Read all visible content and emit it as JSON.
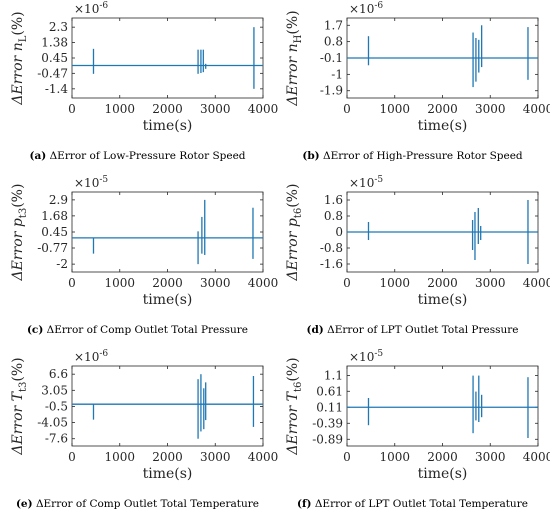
{
  "chart_data": [
    {
      "id": "a",
      "type": "line",
      "caption_letter": "(a)",
      "caption_text": "ΔError of Low-Pressure Rotor Speed",
      "ylabel_main": "ΔError n",
      "ylabel_sub": "L",
      "ylabel_unit": "(%)",
      "multiplier": "×10",
      "multiplier_exp": "-6",
      "xlabel": "time(s)",
      "xlim": [
        0,
        4000
      ],
      "ylim": [
        -1.95,
        2.85
      ],
      "yticks": [
        "2.3",
        "1.38",
        "0.45",
        "-0.47",
        "-1.4"
      ],
      "ytick_values": [
        2.3,
        1.38,
        0.45,
        -0.47,
        -1.4
      ],
      "xticks": [
        "0",
        "1000",
        "2000",
        "3000",
        "4000"
      ],
      "xtick_values": [
        0,
        1000,
        2000,
        3000,
        4000
      ],
      "baseline": 0,
      "spikes": [
        [
          450,
          -0.5,
          1.0
        ],
        [
          2640,
          -0.5,
          0.95
        ],
        [
          2700,
          -0.45,
          0.95
        ],
        [
          2750,
          -0.4,
          0.95
        ],
        [
          2800,
          -0.2,
          0.1
        ],
        [
          3810,
          -1.4,
          2.3
        ]
      ],
      "color": "#1f77b4"
    },
    {
      "id": "b",
      "type": "line",
      "caption_letter": "(b)",
      "caption_text": "ΔError of High-Pressure Rotor Speed",
      "ylabel_main": "ΔError n",
      "ylabel_sub": "H",
      "ylabel_unit": "(%)",
      "multiplier": "×10",
      "multiplier_exp": "-6",
      "xlabel": "time(s)",
      "xlim": [
        0,
        4000
      ],
      "ylim": [
        -2.3,
        2.1
      ],
      "yticks": [
        "1.7",
        "0.8",
        "-0.1",
        "-1",
        "-1.9"
      ],
      "ytick_values": [
        1.7,
        0.8,
        -0.1,
        -1,
        -1.9
      ],
      "xticks": [
        "0",
        "1000",
        "2000",
        "3000",
        "4000"
      ],
      "xtick_values": [
        0,
        1000,
        2000,
        3000,
        4000
      ],
      "baseline": -0.1,
      "spikes": [
        [
          450,
          -0.5,
          1.1
        ],
        [
          2640,
          -1.7,
          1.3
        ],
        [
          2700,
          -1.4,
          1.0
        ],
        [
          2760,
          -0.9,
          0.9
        ],
        [
          2820,
          -0.6,
          1.7
        ],
        [
          3790,
          -1.3,
          1.6
        ]
      ],
      "color": "#1f77b4"
    },
    {
      "id": "c",
      "type": "line",
      "caption_letter": "(c)",
      "caption_text": "ΔError of Comp Outlet Total Pressure",
      "ylabel_main": "ΔError p",
      "ylabel_sub": "t3",
      "ylabel_unit": "(%)",
      "multiplier": "×10",
      "multiplier_exp": "-5",
      "xlabel": "time(s)",
      "xlim": [
        0,
        4000
      ],
      "ylim": [
        -2.6,
        3.5
      ],
      "yticks": [
        "2.9",
        "1.68",
        "0.45",
        "-0.77",
        "-2"
      ],
      "ytick_values": [
        2.9,
        1.68,
        0.45,
        -0.77,
        -2
      ],
      "xticks": [
        "0",
        "1000",
        "2000",
        "3000",
        "4000"
      ],
      "xtick_values": [
        0,
        1000,
        2000,
        3000,
        4000
      ],
      "baseline": 0,
      "spikes": [
        [
          450,
          -1.2,
          0
        ],
        [
          2640,
          -2.0,
          0.5
        ],
        [
          2720,
          -1.2,
          1.6
        ],
        [
          2780,
          -1.3,
          2.9
        ],
        [
          3790,
          -1.6,
          2.3
        ]
      ],
      "color": "#1f77b4"
    },
    {
      "id": "d",
      "type": "line",
      "caption_letter": "(d)",
      "caption_text": "ΔError of LPT Outlet Total Pressure",
      "ylabel_main": "ΔError p",
      "ylabel_sub": "t6",
      "ylabel_unit": "(%)",
      "multiplier": "×10",
      "multiplier_exp": "-5",
      "xlabel": "time(s)",
      "xlim": [
        0,
        4000
      ],
      "ylim": [
        -2.0,
        2.0
      ],
      "yticks": [
        "1.6",
        "0.8",
        "0",
        "-0.8",
        "-1.6"
      ],
      "ytick_values": [
        1.6,
        0.8,
        0,
        -0.8,
        -1.6
      ],
      "xticks": [
        "0",
        "1000",
        "2000",
        "3000",
        "4000"
      ],
      "xtick_values": [
        0,
        1000,
        2000,
        3000,
        4000
      ],
      "baseline": 0,
      "spikes": [
        [
          450,
          -0.4,
          0.5
        ],
        [
          2630,
          -0.9,
          0.6
        ],
        [
          2680,
          -1.4,
          1.0
        ],
        [
          2750,
          -0.6,
          1.2
        ],
        [
          2800,
          -0.4,
          0.3
        ],
        [
          3790,
          -1.6,
          1.6
        ]
      ],
      "color": "#1f77b4"
    },
    {
      "id": "e",
      "type": "line",
      "caption_letter": "(e)",
      "caption_text": "ΔError of Comp Outlet Total Temperature",
      "ylabel_main": "ΔError T",
      "ylabel_sub": "t3",
      "ylabel_unit": "(%)",
      "multiplier": "×10",
      "multiplier_exp": "-6",
      "xlabel": "time(s)",
      "xlim": [
        0,
        4000
      ],
      "ylim": [
        -9.2,
        8.4
      ],
      "yticks": [
        "6.6",
        "3.05",
        "-0.5",
        "-4.05",
        "-7.6"
      ],
      "ytick_values": [
        6.6,
        3.05,
        -0.5,
        -4.05,
        -7.6
      ],
      "xticks": [
        "0",
        "1000",
        "2000",
        "3000",
        "4000"
      ],
      "xtick_values": [
        0,
        1000,
        2000,
        3000,
        4000
      ],
      "baseline": 0,
      "spikes": [
        [
          450,
          -3.4,
          0
        ],
        [
          2640,
          -7.6,
          5.5
        ],
        [
          2700,
          -6.0,
          6.6
        ],
        [
          2760,
          -5.5,
          3.5
        ],
        [
          2800,
          -3.5,
          4.8
        ],
        [
          3800,
          -5.0,
          6.2
        ]
      ],
      "color": "#1f77b4"
    },
    {
      "id": "f",
      "type": "line",
      "caption_letter": "(f)",
      "caption_text": "ΔError of LPT Outlet Total Temperature",
      "ylabel_main": "ΔError T",
      "ylabel_sub": "t6",
      "ylabel_unit": "(%)",
      "multiplier": "×10",
      "multiplier_exp": "-5",
      "xlabel": "time(s)",
      "xlim": [
        0,
        4000
      ],
      "ylim": [
        -1.1,
        1.4
      ],
      "yticks": [
        "1.1",
        "0.61",
        "0.11",
        "-0.39",
        "-0.89"
      ],
      "ytick_values": [
        1.1,
        0.61,
        0.11,
        -0.39,
        -0.89
      ],
      "xticks": [
        "0",
        "1000",
        "2000",
        "3000",
        "4000"
      ],
      "xtick_values": [
        0,
        1000,
        2000,
        3000,
        4000
      ],
      "baseline": 0.11,
      "spikes": [
        [
          450,
          -0.45,
          0.4
        ],
        [
          2640,
          -0.7,
          1.1
        ],
        [
          2700,
          -0.3,
          0.6
        ],
        [
          2760,
          -0.35,
          1.1
        ],
        [
          2820,
          -0.2,
          0.5
        ],
        [
          3790,
          -0.85,
          1.05
        ]
      ],
      "color": "#1f77b4"
    }
  ]
}
